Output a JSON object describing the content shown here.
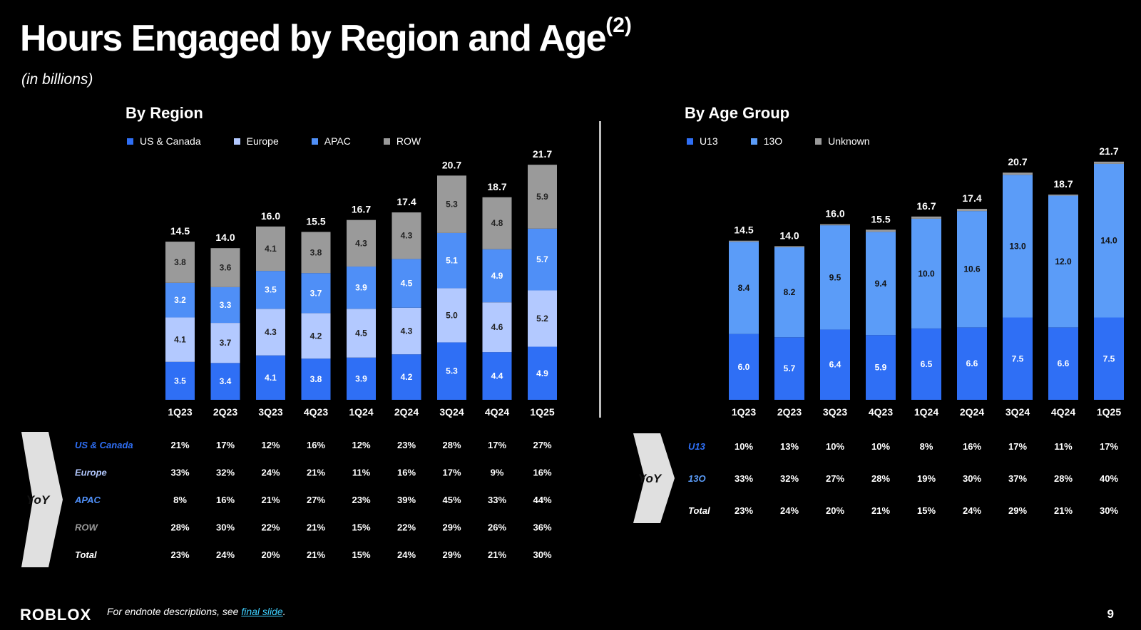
{
  "title": "Hours Engaged by Region and Age",
  "title_note": "(2)",
  "subtitle": "(in billions)",
  "colors": {
    "us_canada": "#2f6ff5",
    "europe": "#b3c9ff",
    "apac": "#4f8ff7",
    "row": "#9a9a9a",
    "u13": "#2f6ff5",
    "age13o": "#5b9cf8",
    "unknown": "#9a9a9a",
    "yoy_box": "#e0e0e0"
  },
  "region": {
    "title": "By Region",
    "legend": [
      "US & Canada",
      "Europe",
      "APAC",
      "ROW"
    ]
  },
  "age": {
    "title": "By Age Group",
    "legend": [
      "U13",
      "13O",
      "Unknown"
    ]
  },
  "yoy_label": "YoY",
  "chart_data": [
    {
      "type": "bar",
      "stacked": true,
      "title": "By Region",
      "categories": [
        "1Q23",
        "2Q23",
        "3Q23",
        "4Q23",
        "1Q24",
        "2Q24",
        "3Q24",
        "4Q24",
        "1Q25"
      ],
      "series": [
        {
          "name": "US & Canada",
          "values": [
            3.5,
            3.4,
            4.1,
            3.8,
            3.9,
            4.2,
            5.3,
            4.4,
            4.9
          ]
        },
        {
          "name": "Europe",
          "values": [
            4.1,
            3.7,
            4.3,
            4.2,
            4.5,
            4.3,
            5.0,
            4.6,
            5.2
          ]
        },
        {
          "name": "APAC",
          "values": [
            3.2,
            3.3,
            3.5,
            3.7,
            3.9,
            4.5,
            5.1,
            4.9,
            5.7
          ]
        },
        {
          "name": "ROW",
          "values": [
            3.8,
            3.6,
            4.1,
            3.8,
            4.3,
            4.3,
            5.3,
            4.8,
            5.9
          ]
        }
      ],
      "totals": [
        "14.5",
        "14.0",
        "16.0",
        "15.5",
        "16.7",
        "17.4",
        "20.7",
        "18.7",
        "21.7"
      ],
      "legend_position": "top",
      "yoy": [
        {
          "label": "US & Canada",
          "values": [
            "21%",
            "17%",
            "12%",
            "16%",
            "12%",
            "23%",
            "28%",
            "17%",
            "27%"
          ]
        },
        {
          "label": "Europe",
          "values": [
            "33%",
            "32%",
            "24%",
            "21%",
            "11%",
            "16%",
            "17%",
            "9%",
            "16%"
          ]
        },
        {
          "label": "APAC",
          "values": [
            "8%",
            "16%",
            "21%",
            "27%",
            "23%",
            "39%",
            "45%",
            "33%",
            "44%"
          ]
        },
        {
          "label": "ROW",
          "values": [
            "28%",
            "30%",
            "22%",
            "21%",
            "15%",
            "22%",
            "29%",
            "26%",
            "36%"
          ]
        },
        {
          "label": "Total",
          "values": [
            "23%",
            "24%",
            "20%",
            "21%",
            "15%",
            "24%",
            "29%",
            "21%",
            "30%"
          ]
        }
      ]
    },
    {
      "type": "bar",
      "stacked": true,
      "title": "By Age Group",
      "categories": [
        "1Q23",
        "2Q23",
        "3Q23",
        "4Q23",
        "1Q24",
        "2Q24",
        "3Q24",
        "4Q24",
        "1Q25"
      ],
      "series": [
        {
          "name": "U13",
          "values": [
            6.0,
            5.7,
            6.4,
            5.9,
            6.5,
            6.6,
            7.5,
            6.6,
            7.5
          ]
        },
        {
          "name": "13O",
          "values": [
            8.4,
            8.2,
            9.5,
            9.4,
            10.0,
            10.6,
            13.0,
            12.0,
            14.0
          ]
        },
        {
          "name": "Unknown",
          "values": [
            0.1,
            0.1,
            0.1,
            0.2,
            0.2,
            0.2,
            0.2,
            0.1,
            0.2
          ]
        }
      ],
      "totals": [
        "14.5",
        "14.0",
        "16.0",
        "15.5",
        "16.7",
        "17.4",
        "20.7",
        "18.7",
        "21.7"
      ],
      "legend_position": "top",
      "yoy": [
        {
          "label": "U13",
          "values": [
            "10%",
            "13%",
            "10%",
            "10%",
            "8%",
            "16%",
            "17%",
            "11%",
            "17%"
          ]
        },
        {
          "label": "13O",
          "values": [
            "33%",
            "32%",
            "27%",
            "28%",
            "19%",
            "30%",
            "37%",
            "28%",
            "40%"
          ]
        },
        {
          "label": "Total",
          "values": [
            "23%",
            "24%",
            "20%",
            "21%",
            "15%",
            "24%",
            "29%",
            "21%",
            "30%"
          ]
        }
      ]
    }
  ],
  "footer": {
    "logo": "ROBLOX",
    "note_prefix": "For endnote descriptions, see ",
    "note_link": "final slide",
    "note_suffix": ".",
    "page_number": "9"
  }
}
